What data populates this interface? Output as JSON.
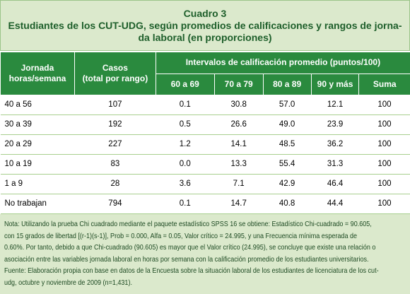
{
  "header": {
    "title": "Cuadro 3",
    "subtitle_lines": [
      "Estudiantes de los CUT-UDG, según promedios de calificaciones y rangos de jorna-",
      "da laboral (en proporciones)"
    ]
  },
  "table": {
    "columns": {
      "jornada": [
        "Jornada",
        "horas/semana"
      ],
      "casos": [
        "Casos",
        "(total por rango)"
      ],
      "intervalos": "Intervalos de calificación promedio (puntos/100)",
      "ranges": [
        "60 a 69",
        "70 a 79",
        "80 a 89",
        "90 y más",
        "Suma"
      ]
    },
    "rows": [
      [
        "40 a 56",
        "107",
        "0.1",
        "30.8",
        "57.0",
        "12.1",
        "100"
      ],
      [
        "30 a 39",
        "192",
        "0.5",
        "26.6",
        "49.0",
        "23.9",
        "100"
      ],
      [
        "20 a 29",
        "227",
        "1.2",
        "14.1",
        "48.5",
        "36.2",
        "100"
      ],
      [
        "10 a 19",
        "83",
        "0.0",
        "13.3",
        "55.4",
        "31.3",
        "100"
      ],
      [
        "1 a 9",
        "28",
        "3.6",
        "7.1",
        "42.9",
        "46.4",
        "100"
      ],
      [
        "No trabajan",
        "794",
        "0.1",
        "14.7",
        "40.8",
        "44.4",
        "100"
      ]
    ]
  },
  "note": {
    "lines": [
      "Nota: Utilizando la prueba Chi cuadrado mediante el paquete estadístico SPSS 16 se obtiene: Estadístico Chi-cuadrado = 90.605,",
      "con 15 grados de libertad [(r-1)(s-1)], Prob = 0.000, Alfa = 0.05, Valor crítico = 24.995, y una Frecuencia mínima esperada de",
      "0.60%. Por tanto, debido a que Chi-cuadrado (90.605) es mayor que el Valor crítico (24.995), se concluye que existe una relación o",
      "asociación entre las variables jornada laboral en horas por semana con la calificación promedio de los estudiantes universitarios.",
      "Fuente: Elaboración propia con base en datos de la Encuesta sobre la situación laboral de los estudiantes de licenciatura de los cut-",
      "udg, octubre y noviembre de 2009 (n=1,431)."
    ]
  }
}
